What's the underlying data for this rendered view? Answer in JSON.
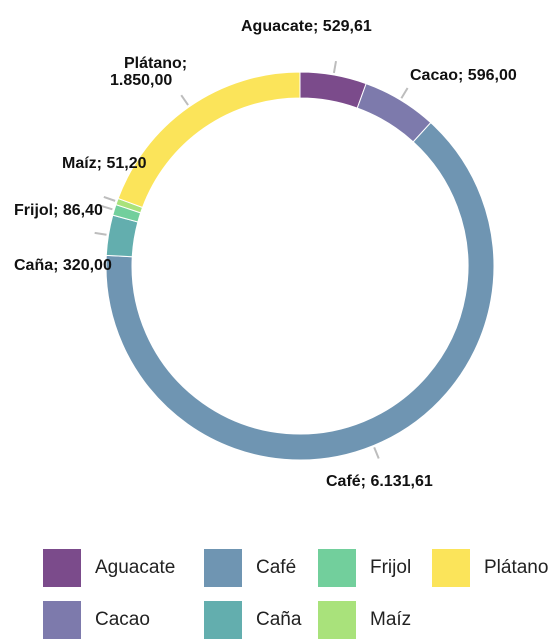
{
  "chart_data": {
    "type": "pie",
    "donut": true,
    "categories": [
      "Aguacate",
      "Cacao",
      "Café",
      "Caña",
      "Frijol",
      "Maíz",
      "Plátano"
    ],
    "values": [
      529.61,
      596.0,
      6131.61,
      320.0,
      86.4,
      51.2,
      1850.0
    ],
    "labels": [
      "Aguacate; 529,61",
      "Cacao; 596,00",
      "Café; 6.131,61",
      "Caña; 320,00",
      "Frijol; 86,40",
      "Maíz; 51,20",
      "Plátano; 1.850,00"
    ],
    "colors": [
      "#7b4b8b",
      "#7d7aac",
      "#6f95b2",
      "#63aeae",
      "#72cf9c",
      "#a9e27b",
      "#fbe45a"
    ],
    "legend": {
      "placement": "bottom",
      "entries": [
        {
          "name": "Aguacate",
          "color": "#7b4b8b"
        },
        {
          "name": "Café",
          "color": "#6f95b2"
        },
        {
          "name": "Frijol",
          "color": "#72cf9c"
        },
        {
          "name": "Plátano",
          "color": "#fbe45a"
        },
        {
          "name": "Cacao",
          "color": "#7d7aac"
        },
        {
          "name": "Caña",
          "color": "#63aeae"
        },
        {
          "name": "Maíz",
          "color": "#a9e27b"
        }
      ]
    }
  }
}
